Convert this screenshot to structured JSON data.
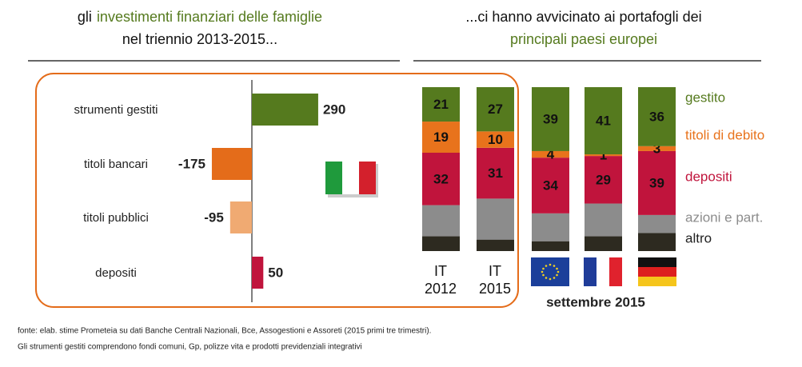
{
  "chart_data": [
    {
      "type": "bar",
      "orientation": "horizontal",
      "title": [
        "gli",
        "investimenti finanziari delle famiglie",
        "nel triennio 2013-2015..."
      ],
      "categories": [
        "strumenti gestiti",
        "titoli bancari",
        "titoli pubblici",
        "depositi"
      ],
      "values": [
        290,
        -175,
        -95,
        50
      ],
      "colors": [
        "#557a1e",
        "#e46c1a",
        "#f0aa72",
        "#c0143c"
      ]
    },
    {
      "type": "stacked_bar",
      "title": [
        "...ci hanno avvicinato ai portafogli dei",
        "principali paesi europei"
      ],
      "categories": [
        "IT 2012",
        "IT 2015",
        null,
        null,
        null
      ],
      "annotation": "settembre 2015",
      "series": [
        {
          "name": "altro",
          "color": "#2d2a20",
          "text_color": "#222222",
          "show_labels": false,
          "values": [
            9,
            7,
            6,
            9,
            11
          ]
        },
        {
          "name": "azioni e part.",
          "color": "#8c8c8c",
          "text_color": "#8c8c8c",
          "show_labels": false,
          "values": [
            19,
            25,
            17,
            20,
            11
          ]
        },
        {
          "name": "depositi",
          "color": "#c0143c",
          "text_color": "#c0143c",
          "show_labels": true,
          "values": [
            32,
            31,
            34,
            29,
            39
          ]
        },
        {
          "name": "titoli di debito",
          "color": "#e8731c",
          "text_color": "#e8731c",
          "show_labels": true,
          "values": [
            19,
            10,
            4,
            1,
            3
          ]
        },
        {
          "name": "gestito",
          "color": "#557a1e",
          "text_color": "#557a1e",
          "show_labels": true,
          "values": [
            21,
            27,
            39,
            41,
            36
          ]
        }
      ]
    }
  ],
  "notes": [
    "fonte: elab. stime Prometeia su dati Banche Centrali Nazionali, Bce, Assogestioni e Assoreti (2015 primi tre trimestri).",
    "Gli strumenti gestiti comprendono fondi comuni, Gp, polizze vita e prodotti previdenziali integrativi"
  ]
}
